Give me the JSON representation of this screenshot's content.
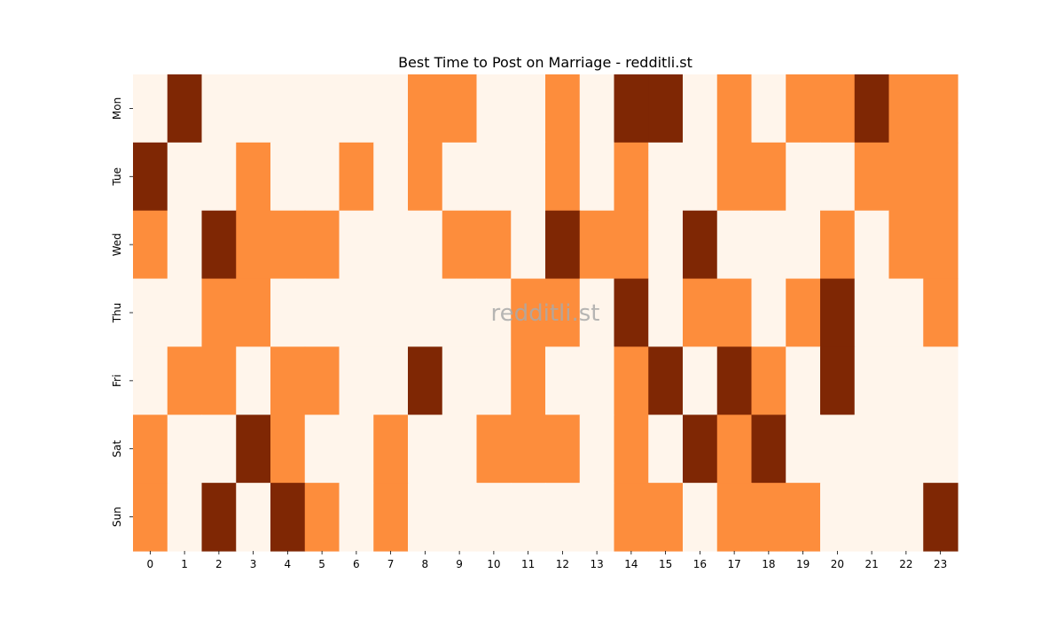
{
  "chart_data": {
    "type": "heatmap",
    "title": "Best Time to Post on Marriage - redditli.st",
    "watermark": "redditli.st",
    "x": [
      "0",
      "1",
      "2",
      "3",
      "4",
      "5",
      "6",
      "7",
      "8",
      "9",
      "10",
      "11",
      "12",
      "13",
      "14",
      "15",
      "16",
      "17",
      "18",
      "19",
      "20",
      "21",
      "22",
      "23"
    ],
    "y": [
      "Mon",
      "Tue",
      "Wed",
      "Thu",
      "Fri",
      "Sat",
      "Sun"
    ],
    "values": [
      [
        0,
        2,
        0,
        0,
        0,
        0,
        0,
        0,
        1,
        1,
        0,
        0,
        1,
        0,
        2,
        2,
        0,
        1,
        0,
        1,
        1,
        2,
        1,
        1
      ],
      [
        2,
        0,
        0,
        1,
        0,
        0,
        1,
        0,
        1,
        0,
        0,
        0,
        1,
        0,
        1,
        0,
        0,
        1,
        1,
        0,
        0,
        1,
        1,
        1
      ],
      [
        1,
        0,
        2,
        1,
        1,
        1,
        0,
        0,
        0,
        1,
        1,
        0,
        2,
        1,
        1,
        0,
        2,
        0,
        0,
        0,
        1,
        0,
        1,
        1
      ],
      [
        0,
        0,
        1,
        1,
        0,
        0,
        0,
        0,
        0,
        0,
        0,
        1,
        1,
        0,
        2,
        0,
        1,
        1,
        0,
        1,
        2,
        0,
        0,
        1
      ],
      [
        0,
        1,
        1,
        0,
        1,
        1,
        0,
        0,
        2,
        0,
        0,
        1,
        0,
        0,
        1,
        2,
        0,
        2,
        1,
        0,
        2,
        0,
        0,
        0
      ],
      [
        1,
        0,
        0,
        2,
        1,
        0,
        0,
        1,
        0,
        0,
        1,
        1,
        1,
        0,
        1,
        0,
        2,
        1,
        2,
        0,
        0,
        0,
        0,
        0
      ],
      [
        1,
        0,
        2,
        0,
        2,
        1,
        0,
        1,
        0,
        0,
        0,
        0,
        0,
        0,
        1,
        1,
        0,
        1,
        1,
        1,
        0,
        0,
        0,
        2
      ]
    ],
    "color_scale": [
      "#fff5eb",
      "#fd8d3c",
      "#7f2704"
    ],
    "colorbar": false,
    "grid": false
  }
}
